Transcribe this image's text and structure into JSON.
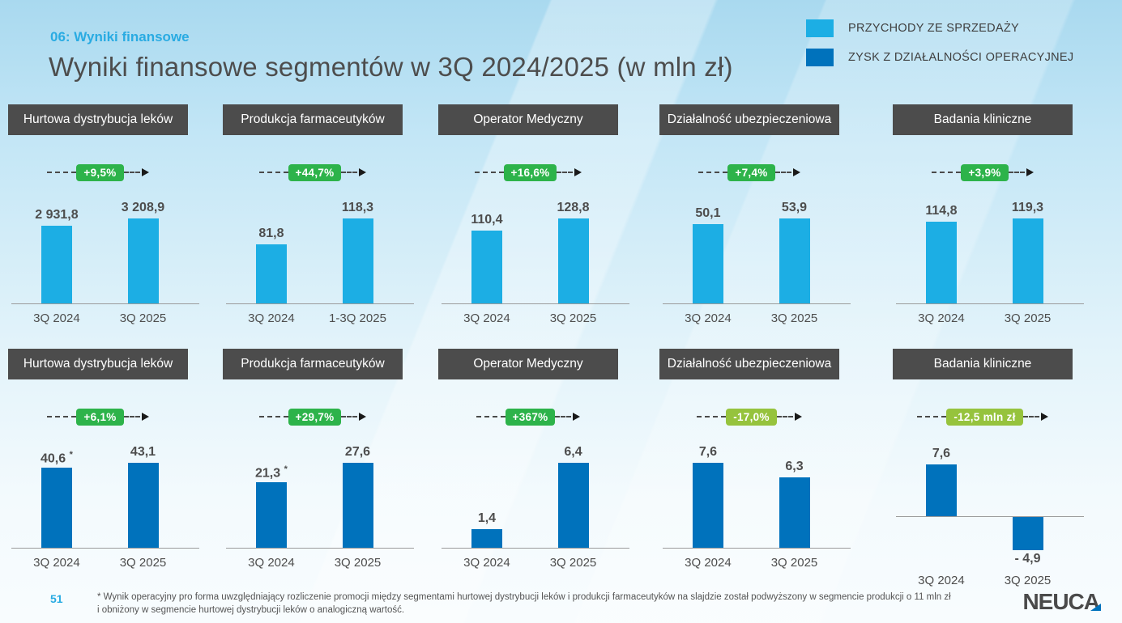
{
  "header": {
    "kicker": "06: Wyniki finansowe",
    "title": "Wyniki finansowe segmentów w 3Q 2024/2025 (w mln zł)"
  },
  "legend": [
    {
      "label": "PRZYCHODY ZE SPRZEDAŻY",
      "color": "#1caee4"
    },
    {
      "label": "ZYSK Z DZIAŁALNOŚCI OPERACYJNEJ",
      "color": "#0072bc"
    }
  ],
  "colors": {
    "revenue_bar": "#1caee4",
    "profit_bar": "#0072bc",
    "badge_positive": "#2db34a",
    "badge_negative": "#96c33d",
    "segment_header_bg": "#4c4c4c",
    "accent_cyan": "#29abe2",
    "text_dark": "#4d4d4d"
  },
  "footnote_symbol": "*",
  "chart_data": [
    {
      "type": "bar",
      "row": 1,
      "segment": "Hurtowa dystrybucja leków",
      "series_name": "PRZYCHODY ZE SPRZEDAŻY",
      "change": "+9,5%",
      "badge_style": "green",
      "bar_color": "#1caee4",
      "categories": [
        "3Q 2024",
        "3Q 2025"
      ],
      "values": [
        2931.8,
        3208.9
      ],
      "value_labels": [
        "2 931,8",
        "3 208,9"
      ],
      "stars": [
        false,
        false
      ]
    },
    {
      "type": "bar",
      "row": 1,
      "segment": "Produkcja farmaceutyków",
      "series_name": "PRZYCHODY ZE SPRZEDAŻY",
      "change": "+44,7%",
      "badge_style": "green",
      "bar_color": "#1caee4",
      "categories": [
        "3Q 2024",
        "1-3Q 2025"
      ],
      "values": [
        81.8,
        118.3
      ],
      "value_labels": [
        "81,8",
        "118,3"
      ],
      "stars": [
        false,
        false
      ]
    },
    {
      "type": "bar",
      "row": 1,
      "segment": "Operator Medyczny",
      "series_name": "PRZYCHODY ZE SPRZEDAŻY",
      "change": "+16,6%",
      "badge_style": "green",
      "bar_color": "#1caee4",
      "categories": [
        "3Q 2024",
        "3Q 2025"
      ],
      "values": [
        110.4,
        128.8
      ],
      "value_labels": [
        "110,4",
        "128,8"
      ],
      "stars": [
        false,
        false
      ]
    },
    {
      "type": "bar",
      "row": 1,
      "segment": "Działalność ubezpieczeniowa",
      "series_name": "PRZYCHODY ZE SPRZEDAŻY",
      "change": "+7,4%",
      "badge_style": "green",
      "bar_color": "#1caee4",
      "categories": [
        "3Q 2024",
        "3Q 2025"
      ],
      "values": [
        50.1,
        53.9
      ],
      "value_labels": [
        "50,1",
        "53,9"
      ],
      "stars": [
        false,
        false
      ]
    },
    {
      "type": "bar",
      "row": 1,
      "segment": "Badania kliniczne",
      "series_name": "PRZYCHODY ZE SPRZEDAŻY",
      "change": "+3,9%",
      "badge_style": "green",
      "bar_color": "#1caee4",
      "categories": [
        "3Q 2024",
        "3Q 2025"
      ],
      "values": [
        114.8,
        119.3
      ],
      "value_labels": [
        "114,8",
        "119,3"
      ],
      "stars": [
        false,
        false
      ]
    },
    {
      "type": "bar",
      "row": 2,
      "segment": "Hurtowa dystrybucja leków",
      "series_name": "ZYSK Z DZIAŁALNOŚCI OPERACYJNEJ",
      "change": "+6,1%",
      "badge_style": "green",
      "bar_color": "#0072bc",
      "categories": [
        "3Q 2024",
        "3Q 2025"
      ],
      "values": [
        40.6,
        43.1
      ],
      "value_labels": [
        "40,6",
        "43,1"
      ],
      "stars": [
        true,
        false
      ]
    },
    {
      "type": "bar",
      "row": 2,
      "segment": "Produkcja farmaceutyków",
      "series_name": "ZYSK Z DZIAŁALNOŚCI OPERACYJNEJ",
      "change": "+29,7%",
      "badge_style": "green",
      "bar_color": "#0072bc",
      "categories": [
        "3Q 2024",
        "3Q 2025"
      ],
      "values": [
        21.3,
        27.6
      ],
      "value_labels": [
        "21,3",
        "27,6"
      ],
      "stars": [
        true,
        false
      ]
    },
    {
      "type": "bar",
      "row": 2,
      "segment": "Operator Medyczny",
      "series_name": "ZYSK Z DZIAŁALNOŚCI OPERACYJNEJ",
      "change": "+367%",
      "badge_style": "green",
      "bar_color": "#0072bc",
      "categories": [
        "3Q 2024",
        "3Q 2025"
      ],
      "values": [
        1.4,
        6.4
      ],
      "value_labels": [
        "1,4",
        "6,4"
      ],
      "stars": [
        false,
        false
      ]
    },
    {
      "type": "bar",
      "row": 2,
      "segment": "Działalność ubezpieczeniowa",
      "series_name": "ZYSK Z DZIAŁALNOŚCI OPERACYJNEJ",
      "change": "-17,0%",
      "badge_style": "lime",
      "bar_color": "#0072bc",
      "categories": [
        "3Q 2024",
        "3Q 2025"
      ],
      "values": [
        7.6,
        6.3
      ],
      "value_labels": [
        "7,6",
        "6,3"
      ],
      "stars": [
        false,
        false
      ]
    },
    {
      "type": "bar",
      "row": 2,
      "segment": "Badania kliniczne",
      "series_name": "ZYSK Z DZIAŁALNOŚCI OPERACYJNEJ",
      "change": "-12,5 mln zł",
      "badge_style": "lime",
      "bar_color": "#0072bc",
      "categories": [
        "3Q 2024",
        "3Q 2025"
      ],
      "values": [
        7.6,
        -4.9
      ],
      "value_labels": [
        "7,6",
        "- 4,9"
      ],
      "stars": [
        false,
        false
      ]
    }
  ],
  "footer": {
    "page": "51",
    "footnote_line1": "* Wynik operacyjny pro forma uwzględniający rozliczenie promocji między segmentami hurtowej dystrybucji leków i produkcji farmaceutyków na slajdzie został podwyższony w segmencie produkcji o 11 mln zł",
    "footnote_line2": "i obniżony w segmencie hurtowej dystrybucji leków o analogiczną wartość.",
    "logo": "NEUCA"
  }
}
